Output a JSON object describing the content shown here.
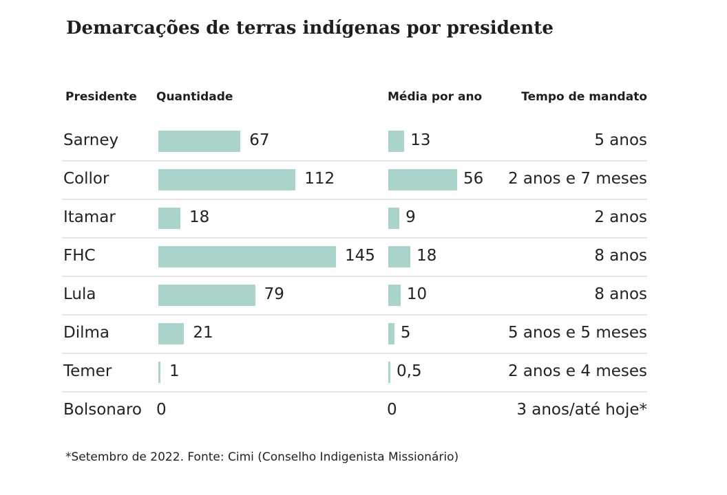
{
  "chart_data": {
    "type": "table",
    "title": "Demarcações de terras indígenas por presidente",
    "columns": [
      "Presidente",
      "Quantidade",
      "Média por ano",
      "Tempo de mandato"
    ],
    "rows": [
      {
        "president": "Sarney",
        "quantity": 67,
        "quantity_label": "67",
        "average": 13,
        "average_label": "13",
        "tenure": "5 anos"
      },
      {
        "president": "Collor",
        "quantity": 112,
        "quantity_label": "112",
        "average": 56,
        "average_label": "56",
        "tenure": "2 anos e 7 meses"
      },
      {
        "president": "Itamar",
        "quantity": 18,
        "quantity_label": "18",
        "average": 9,
        "average_label": "9",
        "tenure": "2 anos"
      },
      {
        "president": "FHC",
        "quantity": 145,
        "quantity_label": "145",
        "average": 18,
        "average_label": "18",
        "tenure": "8 anos"
      },
      {
        "president": "Lula",
        "quantity": 79,
        "quantity_label": "79",
        "average": 10,
        "average_label": "10",
        "tenure": "8 anos"
      },
      {
        "president": "Dilma",
        "quantity": 21,
        "quantity_label": "21",
        "average": 5,
        "average_label": "5",
        "tenure": "5 anos e 5 meses"
      },
      {
        "president": "Temer",
        "quantity": 1,
        "quantity_label": "1",
        "average": 0.5,
        "average_label": "0,5",
        "tenure": "2 anos e 4 meses"
      },
      {
        "president": "Bolsonaro",
        "quantity": 0,
        "quantity_label": "0",
        "average": 0,
        "average_label": "0",
        "tenure": "3 anos/até hoje*"
      }
    ],
    "footnote": "*Setembro de 2022. Fonte: Cimi (Conselho Indigenista Missionário)",
    "bar_color": "#a9d3cb",
    "separator_color": "#e6e6e6"
  }
}
